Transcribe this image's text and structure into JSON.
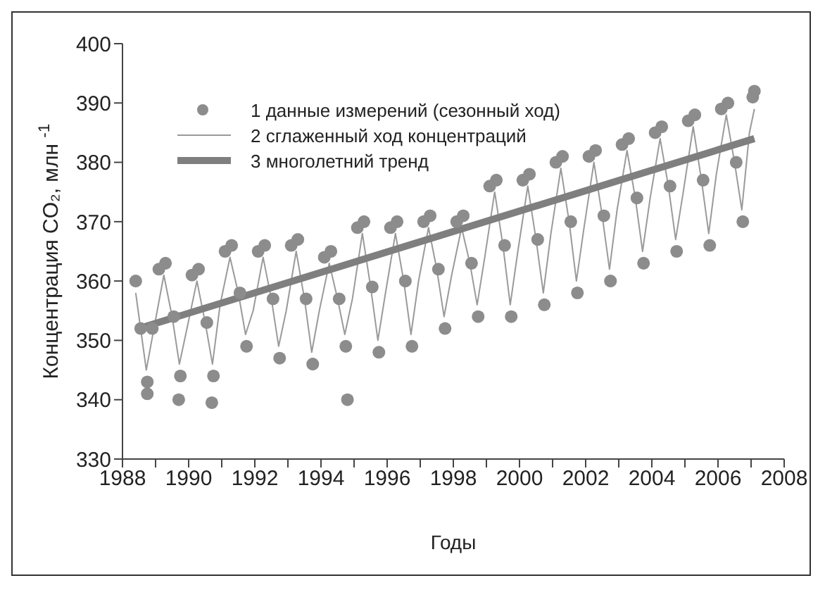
{
  "chart_data": {
    "type": "scatter",
    "xlabel": "Годы",
    "ylabel": "Концентрация CO₂, млн $^{-1}$",
    "xlim": [
      1988,
      2008
    ],
    "ylim": [
      330,
      400
    ],
    "xticks": [
      1988,
      {
        "value": 1989,
        "label": null
      },
      1990,
      {
        "value": 1991,
        "label": null
      },
      1992,
      {
        "value": 1993,
        "label": null
      },
      1994,
      {
        "value": 1995,
        "label": null
      },
      1996,
      {
        "value": 1997,
        "label": null
      },
      1998,
      {
        "value": 1999,
        "label": null
      },
      2000,
      {
        "value": 2001,
        "label": null
      },
      2002,
      {
        "value": 2003,
        "label": null
      },
      2004,
      {
        "value": 2005,
        "label": null
      },
      2006,
      {
        "value": 2007,
        "label": null
      },
      2008
    ],
    "yticks": [
      330,
      340,
      350,
      360,
      370,
      380,
      390,
      400
    ],
    "legend": "top left",
    "series": [
      {
        "name": "1 данные измерений (сезонный ход)",
        "marker": "circle",
        "color": "#8c8c8c",
        "x": [
          1988.4,
          1988.55,
          1988.75,
          1988.9,
          1989.1,
          1989.3,
          1989.55,
          1989.75,
          1990.1,
          1990.3,
          1990.55,
          1990.75,
          1991.1,
          1991.3,
          1991.55,
          1991.75,
          1992.1,
          1992.3,
          1992.55,
          1992.75,
          1993.1,
          1993.3,
          1993.55,
          1993.75,
          1994.1,
          1994.3,
          1994.55,
          1994.75,
          1995.1,
          1995.3,
          1995.55,
          1995.75,
          1996.1,
          1996.3,
          1996.55,
          1996.75,
          1997.1,
          1997.3,
          1997.55,
          1997.75,
          1998.1,
          1998.3,
          1998.55,
          1998.75,
          1999.1,
          1999.3,
          1999.55,
          1999.75,
          2000.1,
          2000.3,
          2000.55,
          2000.75,
          2001.1,
          2001.3,
          2001.55,
          2001.75,
          2002.1,
          2002.3,
          2002.55,
          2002.75,
          2003.1,
          2003.3,
          2003.55,
          2003.75,
          2004.1,
          2004.3,
          2004.55,
          2004.75,
          2005.1,
          2005.3,
          2005.55,
          2005.75,
          2006.1,
          2006.3,
          2006.55,
          2006.75,
          2007.05,
          2007.1,
          1988.75,
          1989.7,
          1990.7,
          1994.8
        ],
        "values": [
          360,
          352,
          343,
          352,
          362,
          363,
          354,
          344,
          361,
          362,
          353,
          344,
          365,
          366,
          358,
          349,
          365,
          366,
          357,
          347,
          366,
          367,
          357,
          346,
          364,
          365,
          357,
          349,
          369,
          370,
          359,
          348,
          369,
          370,
          360,
          349,
          370,
          371,
          362,
          352,
          370,
          371,
          363,
          354,
          376,
          377,
          366,
          354,
          377,
          378,
          367,
          356,
          380,
          381,
          370,
          358,
          381,
          382,
          371,
          360,
          383,
          384,
          374,
          363,
          385,
          386,
          376,
          365,
          387,
          388,
          377,
          366,
          389,
          390,
          380,
          370,
          391,
          392,
          341,
          340,
          339.5,
          340
        ]
      },
      {
        "name": "2 сглаженный ход концентраций",
        "type": "line",
        "marker": "none",
        "color": "#9a9a9a",
        "x": [
          1988.4,
          1988.72,
          1988.95,
          1989.25,
          1989.5,
          1989.72,
          1989.95,
          1990.25,
          1990.5,
          1990.72,
          1990.95,
          1991.25,
          1991.5,
          1991.72,
          1991.95,
          1992.25,
          1992.5,
          1992.72,
          1992.95,
          1993.25,
          1993.5,
          1993.72,
          1993.95,
          1994.25,
          1994.5,
          1994.72,
          1994.95,
          1995.25,
          1995.5,
          1995.72,
          1995.95,
          1996.25,
          1996.5,
          1996.72,
          1996.95,
          1997.25,
          1997.5,
          1997.72,
          1997.95,
          1998.25,
          1998.5,
          1998.72,
          1998.95,
          1999.25,
          1999.5,
          1999.72,
          1999.95,
          2000.25,
          2000.5,
          2000.72,
          2000.95,
          2001.25,
          2001.5,
          2001.72,
          2001.95,
          2002.25,
          2002.5,
          2002.72,
          2002.95,
          2003.25,
          2003.5,
          2003.72,
          2003.95,
          2004.25,
          2004.5,
          2004.72,
          2004.95,
          2005.25,
          2005.5,
          2005.72,
          2005.95,
          2006.25,
          2006.5,
          2006.72,
          2006.95,
          2007.1
        ],
        "values": [
          358,
          345,
          352,
          361,
          354,
          346,
          352,
          360,
          353,
          346,
          356,
          364,
          358,
          351,
          355,
          364,
          357,
          349,
          355,
          365,
          357,
          348,
          355,
          363,
          357,
          351,
          357,
          368,
          359,
          350,
          358,
          368,
          360,
          351,
          360,
          369,
          362,
          354,
          361,
          369,
          363,
          356,
          364,
          375,
          366,
          356,
          365,
          376,
          367,
          358,
          368,
          379,
          370,
          360,
          369,
          380,
          371,
          362,
          372,
          382,
          374,
          365,
          374,
          384,
          376,
          367,
          375,
          386,
          377,
          368,
          378,
          388,
          380,
          372,
          385,
          389
        ]
      },
      {
        "name": "3 многолетний тренд",
        "type": "line",
        "marker": "none",
        "color": "#7f7f7f",
        "x": [
          1988.5,
          2007.1
        ],
        "values": [
          352,
          384
        ]
      }
    ]
  }
}
